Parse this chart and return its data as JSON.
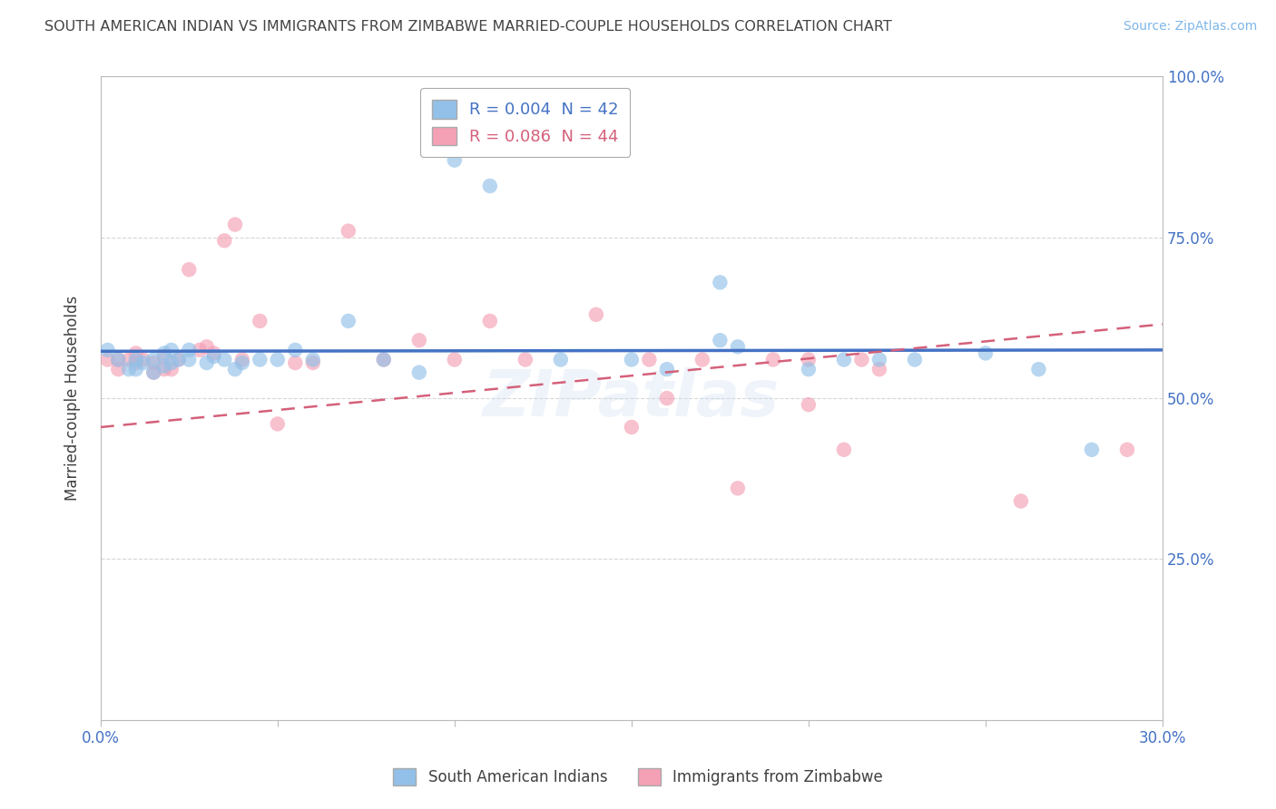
{
  "title": "SOUTH AMERICAN INDIAN VS IMMIGRANTS FROM ZIMBABWE MARRIED-COUPLE HOUSEHOLDS CORRELATION CHART",
  "source": "Source: ZipAtlas.com",
  "ylabel": "Married-couple Households",
  "xlim": [
    0.0,
    0.3
  ],
  "ylim": [
    0.0,
    1.0
  ],
  "yticks": [
    0.0,
    0.25,
    0.5,
    0.75,
    1.0
  ],
  "ytick_labels": [
    "",
    "25.0%",
    "50.0%",
    "75.0%",
    "100.0%"
  ],
  "xtick_labels_show": [
    "0.0%",
    "30.0%"
  ],
  "legend_entries": [
    {
      "label": "R = 0.004  N = 42",
      "color": "#7EB6E8"
    },
    {
      "label": "R = 0.086  N = 44",
      "color": "#F4A0B0"
    }
  ],
  "series1_name": "South American Indians",
  "series2_name": "Immigrants from Zimbabwe",
  "series1_color": "#92C0E8",
  "series2_color": "#F4A0B5",
  "series1_line_color": "#4472C4",
  "series2_line_color": "#D4607A",
  "watermark": "ZIPatlas",
  "background_color": "#FFFFFF",
  "grid_color": "#CCCCCC",
  "axis_color": "#BBBBBB",
  "title_color": "#444444",
  "source_color": "#7EB6E8",
  "tick_color": "#4472C4",
  "series1_x": [
    0.002,
    0.005,
    0.008,
    0.01,
    0.01,
    0.012,
    0.015,
    0.015,
    0.018,
    0.018,
    0.02,
    0.02,
    0.022,
    0.025,
    0.025,
    0.03,
    0.032,
    0.035,
    0.038,
    0.04,
    0.045,
    0.05,
    0.055,
    0.06,
    0.07,
    0.08,
    0.09,
    0.1,
    0.11,
    0.13,
    0.15,
    0.16,
    0.175,
    0.18,
    0.2,
    0.21,
    0.22,
    0.23,
    0.25,
    0.265,
    0.175,
    0.28
  ],
  "series1_y": [
    0.575,
    0.56,
    0.545,
    0.545,
    0.56,
    0.555,
    0.54,
    0.56,
    0.55,
    0.57,
    0.555,
    0.575,
    0.56,
    0.56,
    0.575,
    0.555,
    0.565,
    0.56,
    0.545,
    0.555,
    0.56,
    0.56,
    0.575,
    0.56,
    0.62,
    0.56,
    0.54,
    0.87,
    0.83,
    0.56,
    0.56,
    0.545,
    0.59,
    0.58,
    0.545,
    0.56,
    0.56,
    0.56,
    0.57,
    0.545,
    0.68,
    0.42
  ],
  "series1_sizes": [
    40,
    40,
    40,
    40,
    40,
    40,
    40,
    40,
    40,
    40,
    40,
    40,
    40,
    40,
    40,
    40,
    40,
    40,
    40,
    40,
    40,
    40,
    40,
    40,
    40,
    40,
    40,
    40,
    40,
    40,
    40,
    40,
    40,
    40,
    40,
    40,
    40,
    40,
    40,
    40,
    40,
    40
  ],
  "series2_x": [
    0.002,
    0.005,
    0.005,
    0.008,
    0.01,
    0.01,
    0.012,
    0.015,
    0.015,
    0.018,
    0.018,
    0.02,
    0.022,
    0.025,
    0.028,
    0.03,
    0.032,
    0.035,
    0.038,
    0.04,
    0.045,
    0.05,
    0.055,
    0.06,
    0.07,
    0.08,
    0.09,
    0.1,
    0.11,
    0.12,
    0.14,
    0.15,
    0.155,
    0.16,
    0.17,
    0.18,
    0.19,
    0.2,
    0.2,
    0.21,
    0.215,
    0.22,
    0.26,
    0.29
  ],
  "series2_y": [
    0.56,
    0.545,
    0.56,
    0.56,
    0.555,
    0.57,
    0.56,
    0.54,
    0.555,
    0.545,
    0.565,
    0.545,
    0.56,
    0.7,
    0.575,
    0.58,
    0.57,
    0.745,
    0.77,
    0.56,
    0.62,
    0.46,
    0.555,
    0.555,
    0.76,
    0.56,
    0.59,
    0.56,
    0.62,
    0.56,
    0.63,
    0.455,
    0.56,
    0.5,
    0.56,
    0.36,
    0.56,
    0.49,
    0.56,
    0.42,
    0.56,
    0.545,
    0.34,
    0.42
  ],
  "series2_sizes": [
    40,
    40,
    40,
    40,
    40,
    40,
    40,
    40,
    40,
    40,
    40,
    40,
    40,
    40,
    40,
    40,
    40,
    40,
    40,
    40,
    40,
    40,
    40,
    40,
    40,
    40,
    40,
    40,
    40,
    40,
    40,
    40,
    40,
    40,
    40,
    40,
    40,
    40,
    40,
    40,
    40,
    40,
    40,
    40
  ],
  "s1_line_x0": 0.0,
  "s1_line_x1": 0.3,
  "s1_line_y0": 0.573,
  "s1_line_y1": 0.575,
  "s2_line_x0": 0.0,
  "s2_line_x1": 0.3,
  "s2_line_y0": 0.455,
  "s2_line_y1": 0.615
}
